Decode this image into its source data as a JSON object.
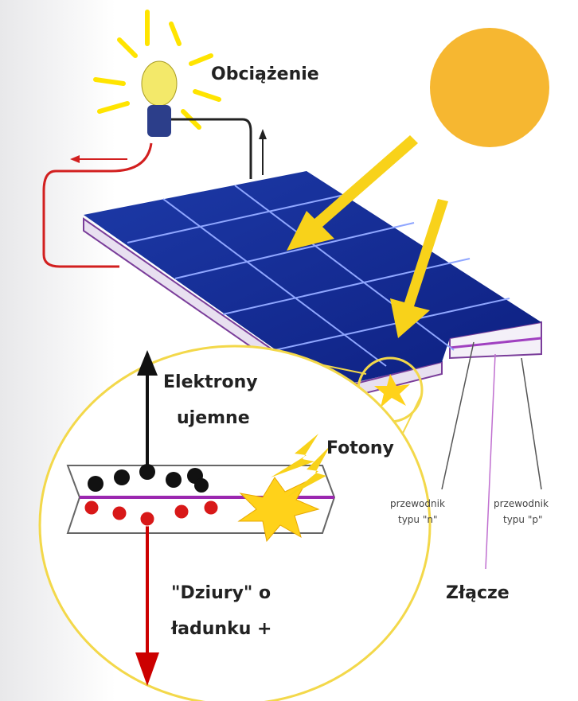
{
  "labels": {
    "load": "Obciążenie",
    "electrons": [
      "Elektrony",
      "ujemne"
    ],
    "photons": "Fotony",
    "n_type": [
      "przewodnik",
      "typu \"n\""
    ],
    "p_type": [
      "przewodnik",
      "typu \"p\""
    ],
    "junction": "Złącze",
    "holes": [
      "\"Dziury\" o",
      "ładunku +"
    ]
  }
}
